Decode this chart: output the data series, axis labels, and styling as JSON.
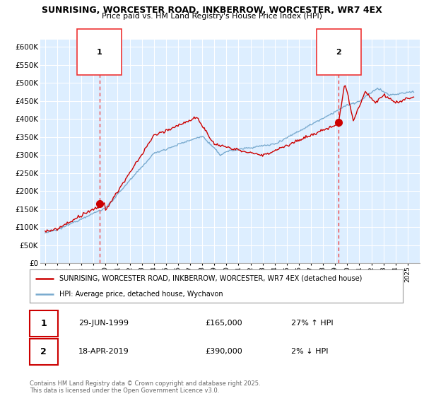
{
  "title": "SUNRISING, WORCESTER ROAD, INKBERROW, WORCESTER, WR7 4EX",
  "subtitle": "Price paid vs. HM Land Registry's House Price Index (HPI)",
  "ylim": [
    0,
    620000
  ],
  "yticks": [
    0,
    50000,
    100000,
    150000,
    200000,
    250000,
    300000,
    350000,
    400000,
    450000,
    500000,
    550000,
    600000
  ],
  "x_start_year": 1995,
  "x_end_year": 2025,
  "sale1_year": 1999.49,
  "sale1_price": 165000,
  "sale2_year": 2019.29,
  "sale2_price": 390000,
  "red_line_color": "#cc0000",
  "blue_line_color": "#7aabcf",
  "dashed_red_color": "#ee3333",
  "plot_bg_color": "#ddeeff",
  "background_color": "#ffffff",
  "grid_color": "#ffffff",
  "legend_label_red": "SUNRISING, WORCESTER ROAD, INKBERROW, WORCESTER, WR7 4EX (detached house)",
  "legend_label_blue": "HPI: Average price, detached house, Wychavon",
  "annotation1_date": "29-JUN-1999",
  "annotation1_price": "£165,000",
  "annotation1_note": "27% ↑ HPI",
  "annotation2_date": "18-APR-2019",
  "annotation2_price": "£390,000",
  "annotation2_note": "2% ↓ HPI",
  "footnote": "Contains HM Land Registry data © Crown copyright and database right 2025.\nThis data is licensed under the Open Government Licence v3.0."
}
